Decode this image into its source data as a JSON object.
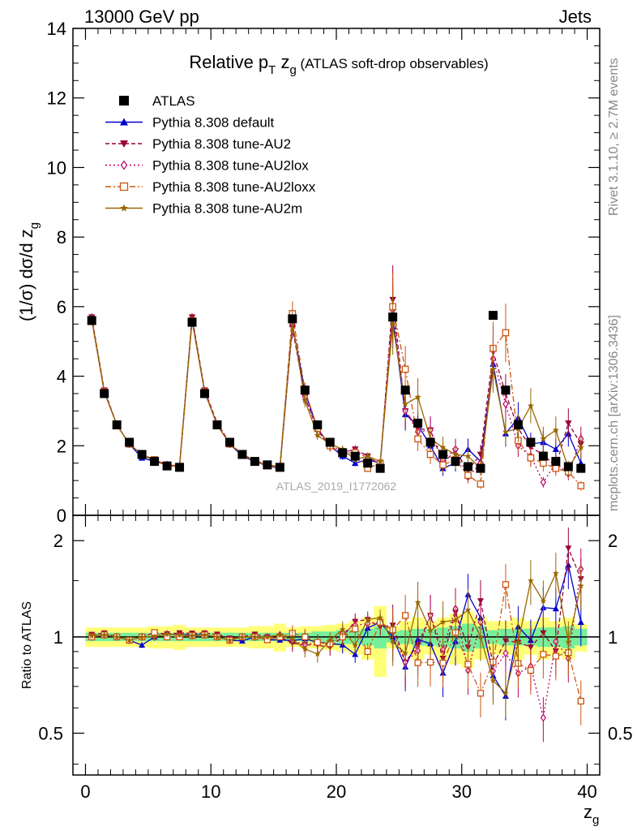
{
  "header": {
    "left": "13000 GeV pp",
    "right": "Jets"
  },
  "side_texts": {
    "rivet": "Rivet 3.1.10, ≥ 2.7M events",
    "mcplots": "mcplots.cern.ch [arXiv:1306.3436]"
  },
  "watermark": "ATLAS_2019_I1772062",
  "colors": {
    "atlas": "#000000",
    "default": "#0000cc",
    "au2": "#990033",
    "au2lox": "#bb0066",
    "au2loxx": "#cc5511",
    "au2m": "#996600",
    "band_yellow": "#ffff77",
    "band_green": "#77ee99"
  },
  "chart_data": {
    "type": "line",
    "title_parts": {
      "main": "Relative p",
      "sub1": "T",
      "mid": " z",
      "sub2": "g",
      "rest": " (ATLAS soft-drop observables)"
    },
    "ylabel_parts": {
      "main": "(1/σ) dσ/d z",
      "sub": "g"
    },
    "xlabel_parts": {
      "main": "z",
      "sub": "g"
    },
    "ratio_ylabel": "Ratio to ATLAS",
    "xlim": [
      -1,
      41
    ],
    "ylim": [
      0,
      14
    ],
    "ratio_ylim": [
      0.37,
      2.4
    ],
    "ratio_scale": "log",
    "legend_position": "top-left",
    "x_ticks": [
      "0",
      "10",
      "20",
      "30",
      "40"
    ],
    "y_ticks": [
      "0",
      "2",
      "4",
      "6",
      "8",
      "10",
      "12",
      "14"
    ],
    "ratio_ticks": [
      "0.5",
      "1",
      "2"
    ],
    "x": [
      0.5,
      1.5,
      2.5,
      3.5,
      4.5,
      5.5,
      6.5,
      7.5,
      8.5,
      9.5,
      10.5,
      11.5,
      12.5,
      13.5,
      14.5,
      15.5,
      16.5,
      17.5,
      18.5,
      19.5,
      20.5,
      21.5,
      22.5,
      23.5,
      24.5,
      25.5,
      26.5,
      27.5,
      28.5,
      29.5,
      30.5,
      31.5,
      32.5,
      33.5,
      34.5,
      35.5,
      36.5,
      37.5,
      38.5,
      39.5
    ],
    "series": [
      {
        "name": "ATLAS",
        "key": "atlas",
        "marker": "square",
        "values": [
          5.6,
          3.5,
          2.6,
          2.1,
          1.75,
          1.55,
          1.42,
          1.38,
          5.55,
          3.5,
          2.6,
          2.1,
          1.75,
          1.55,
          1.45,
          1.38,
          5.65,
          3.6,
          2.6,
          2.1,
          1.8,
          1.7,
          1.5,
          1.35,
          5.7,
          3.6,
          2.65,
          2.1,
          1.75,
          1.55,
          1.4,
          1.35,
          5.75,
          3.6,
          2.6,
          2.1,
          1.7,
          1.55,
          1.4,
          1.35
        ]
      },
      {
        "name": "Pythia 8.308 default",
        "key": "default",
        "marker": "triangle-up",
        "values": [
          5.65,
          3.55,
          2.6,
          2.05,
          1.65,
          1.55,
          1.45,
          1.4,
          5.65,
          3.55,
          2.6,
          2.05,
          1.7,
          1.55,
          1.42,
          1.35,
          5.5,
          3.55,
          2.5,
          2.0,
          1.7,
          1.5,
          1.6,
          1.5,
          5.7,
          2.9,
          2.6,
          2.0,
          1.35,
          1.5,
          1.9,
          1.55,
          4.35,
          2.35,
          2.8,
          2.05,
          2.1,
          1.9,
          2.35,
          1.5
        ]
      },
      {
        "name": "Pythia 8.308 tune-AU2",
        "key": "au2",
        "marker": "triangle-down",
        "values": [
          5.7,
          3.6,
          2.6,
          2.05,
          1.75,
          1.6,
          1.45,
          1.42,
          5.7,
          3.6,
          2.65,
          2.08,
          1.75,
          1.58,
          1.45,
          1.38,
          5.4,
          3.4,
          2.45,
          1.95,
          1.8,
          1.9,
          1.7,
          1.45,
          6.2,
          3.0,
          2.5,
          2.45,
          1.5,
          1.85,
          1.3,
          1.75,
          4.7,
          3.5,
          2.5,
          1.95,
          1.75,
          1.4,
          2.65,
          2.05
        ]
      },
      {
        "name": "Pythia 8.308 tune-AU2lox",
        "key": "au2lox",
        "marker": "diamond",
        "values": [
          5.6,
          3.55,
          2.6,
          2.05,
          1.75,
          1.55,
          1.45,
          1.4,
          5.6,
          3.55,
          2.6,
          2.05,
          1.75,
          1.55,
          1.45,
          1.4,
          5.5,
          3.4,
          2.5,
          2.0,
          1.85,
          1.85,
          1.65,
          1.5,
          5.9,
          3.0,
          2.4,
          2.45,
          1.6,
          1.9,
          1.1,
          1.5,
          4.5,
          3.2,
          2.0,
          1.7,
          0.95,
          1.5,
          1.2,
          2.2
        ]
      },
      {
        "name": "Pythia 8.308 tune-AU2loxx",
        "key": "au2loxx",
        "marker": "open-square",
        "values": [
          5.6,
          3.55,
          2.6,
          2.05,
          1.75,
          1.6,
          1.42,
          1.38,
          5.6,
          3.55,
          2.6,
          2.05,
          1.75,
          1.55,
          1.42,
          1.38,
          5.8,
          3.6,
          2.5,
          2.0,
          1.8,
          1.8,
          1.35,
          1.5,
          6.0,
          4.2,
          2.2,
          1.75,
          1.45,
          1.6,
          1.15,
          0.9,
          4.8,
          5.25,
          2.15,
          1.65,
          1.5,
          1.35,
          1.25,
          0.85
        ]
      },
      {
        "name": "Pythia 8.308 tune-AU2m",
        "key": "au2m",
        "marker": "star",
        "values": [
          5.65,
          3.55,
          2.6,
          2.05,
          1.75,
          1.55,
          1.45,
          1.4,
          5.6,
          3.55,
          2.6,
          2.05,
          1.75,
          1.55,
          1.45,
          1.4,
          5.55,
          3.3,
          2.3,
          2.05,
          1.9,
          1.6,
          1.7,
          1.55,
          5.5,
          3.2,
          3.4,
          2.2,
          1.95,
          1.75,
          1.7,
          1.35,
          4.2,
          2.4,
          2.5,
          3.15,
          2.2,
          2.45,
          1.35,
          1.95
        ]
      }
    ],
    "band_rel_total": [
      0.07,
      0.07,
      0.07,
      0.07,
      0.07,
      0.08,
      0.08,
      0.09,
      0.07,
      0.07,
      0.07,
      0.07,
      0.07,
      0.08,
      0.08,
      0.1,
      0.07,
      0.08,
      0.08,
      0.09,
      0.1,
      0.12,
      0.15,
      0.25,
      0.08,
      0.12,
      0.15,
      0.12,
      0.15,
      0.18,
      0.2,
      0.15,
      0.12,
      0.12,
      0.15,
      0.12,
      0.15,
      0.12,
      0.15,
      0.1
    ],
    "band_rel_stat": [
      0.03,
      0.03,
      0.03,
      0.03,
      0.03,
      0.03,
      0.03,
      0.03,
      0.03,
      0.03,
      0.03,
      0.03,
      0.03,
      0.03,
      0.03,
      0.03,
      0.03,
      0.03,
      0.04,
      0.04,
      0.05,
      0.05,
      0.06,
      0.08,
      0.04,
      0.05,
      0.06,
      0.06,
      0.07,
      0.08,
      0.1,
      0.08,
      0.05,
      0.06,
      0.06,
      0.06,
      0.07,
      0.07,
      0.08,
      0.06
    ]
  }
}
